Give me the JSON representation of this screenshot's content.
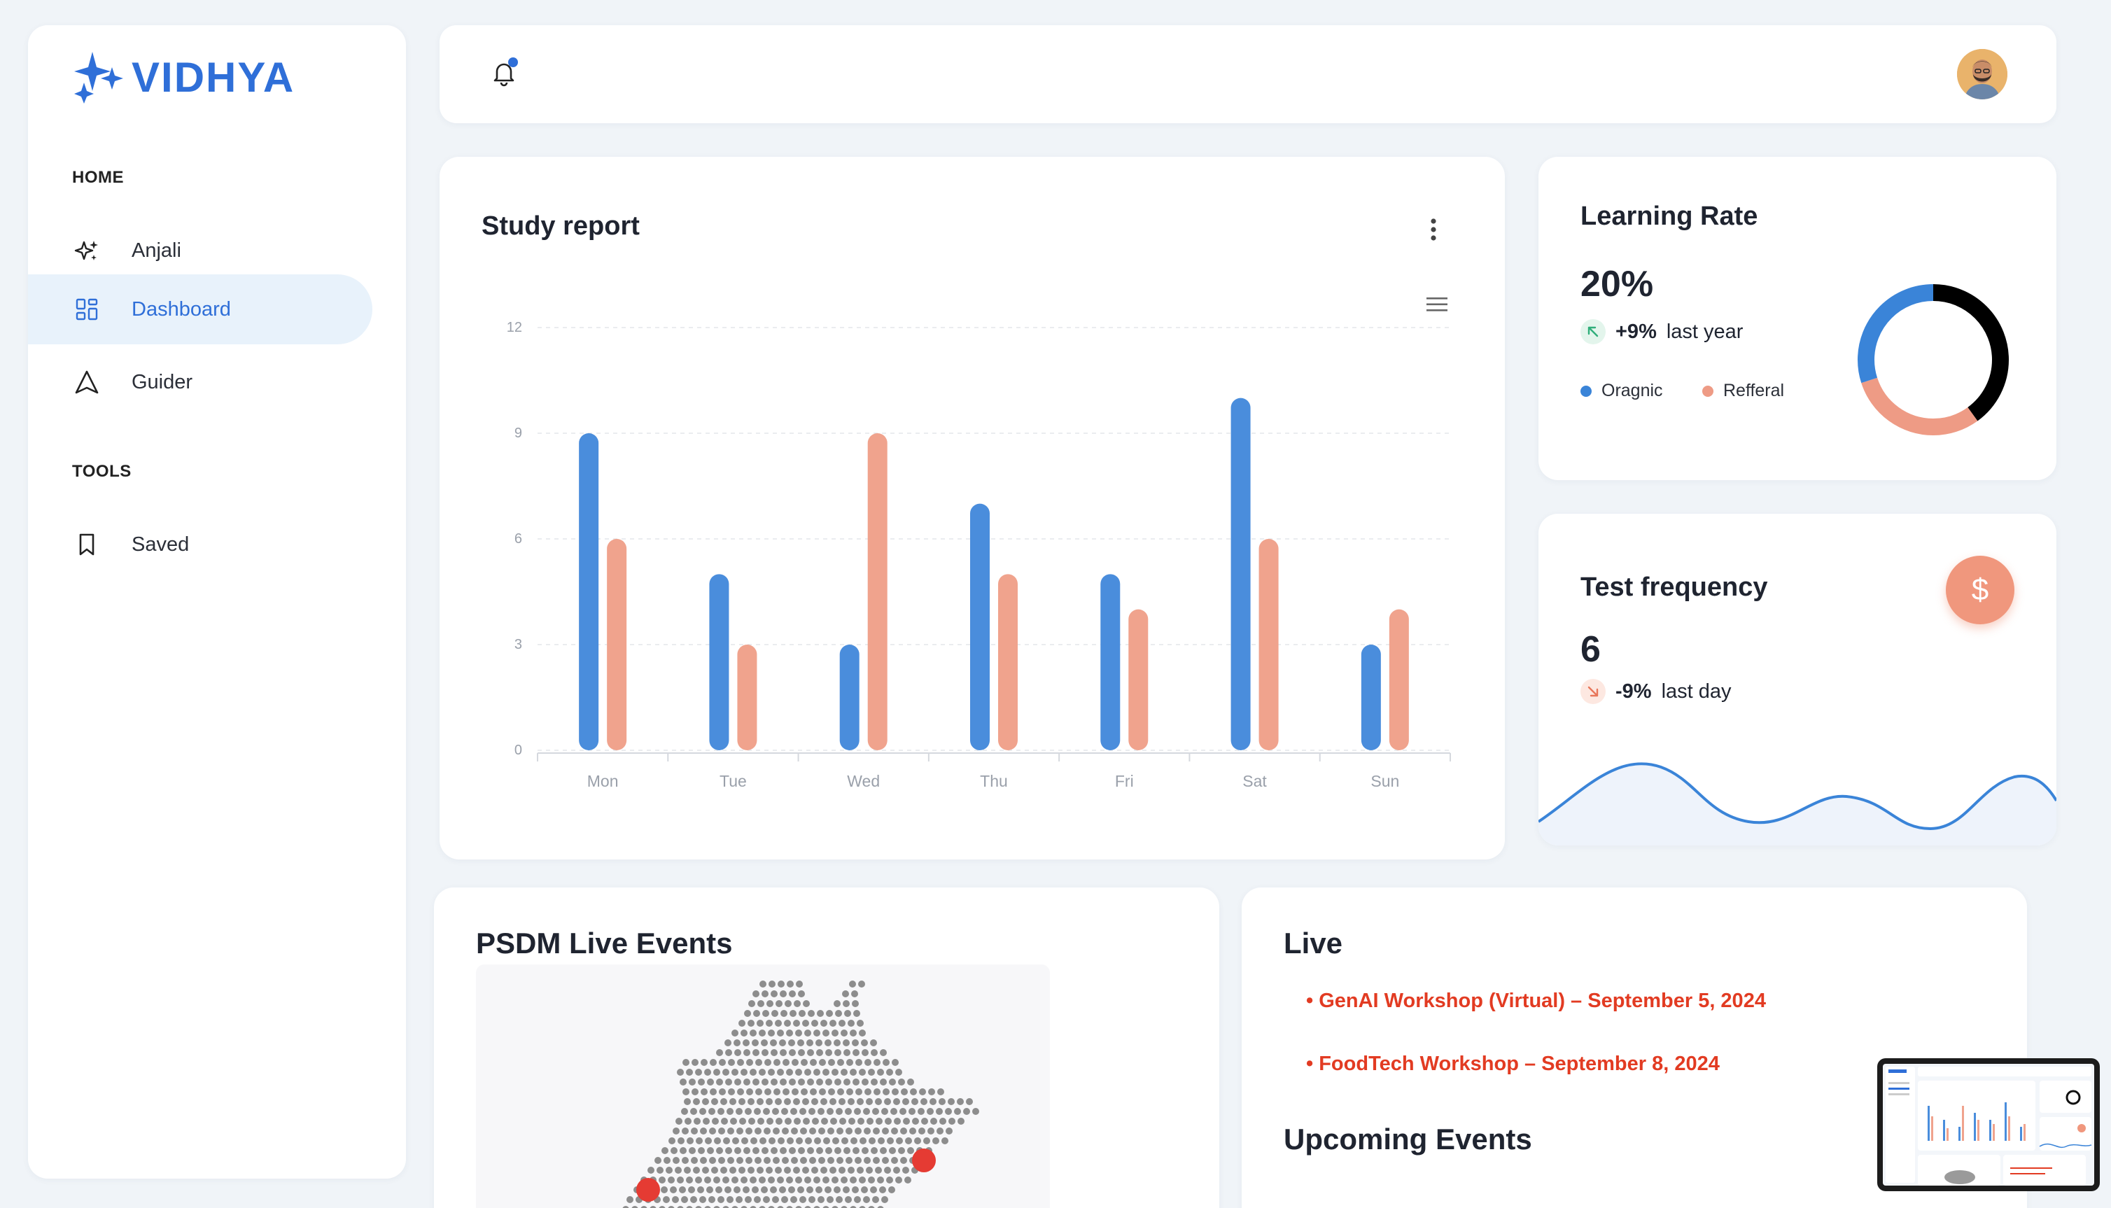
{
  "brand": {
    "name": "VIDHYA",
    "color": "#2f6fd8"
  },
  "sidebar": {
    "sections": [
      {
        "label": "HOME"
      },
      {
        "label": "TOOLS"
      }
    ],
    "items": [
      {
        "label": "Anjali",
        "icon": "sparkle-icon"
      },
      {
        "label": "Dashboard",
        "icon": "grid-icon",
        "active": true
      },
      {
        "label": "Guider",
        "icon": "navigation-arrow-icon"
      },
      {
        "label": "Saved",
        "icon": "bookmark-icon"
      }
    ]
  },
  "header": {
    "notification_icon": "bell-icon",
    "avatar_icon": "user-avatar"
  },
  "study_report": {
    "title": "Study report",
    "menu_icon": "more-vertical-icon",
    "chart_menu_icon": "hamburger-menu-icon"
  },
  "chart_data": {
    "type": "bar",
    "categories": [
      "Mon",
      "Tue",
      "Wed",
      "Thu",
      "Fri",
      "Sat",
      "Sun"
    ],
    "series": [
      {
        "values": [
          9,
          5,
          3,
          7,
          5,
          10,
          3
        ],
        "color": "#4a8ddc"
      },
      {
        "values": [
          6,
          3,
          9,
          5,
          4,
          6,
          4
        ],
        "color": "#f0a38d"
      }
    ],
    "yticks": [
      "0",
      "3",
      "6",
      "9",
      "12"
    ],
    "ylim": [
      0,
      12
    ],
    "grid": true,
    "legend": "none"
  },
  "learning_rate": {
    "title": "Learning Rate",
    "value": "20%",
    "delta": "+9%",
    "delta_label": "last year",
    "delta_color": "#2fae7a",
    "legend": [
      {
        "label": "Oragnic",
        "color": "#3a84d8"
      },
      {
        "label": "Refferal",
        "color": "#ee9b85"
      }
    ],
    "donut": [
      {
        "share": 0.4,
        "color": "#000000"
      },
      {
        "share": 0.3,
        "color": "#ee9b85"
      },
      {
        "share": 0.3,
        "color": "#3a84d8"
      }
    ]
  },
  "test_frequency": {
    "title": "Test frequency",
    "value": "6",
    "delta": "-9%",
    "delta_label": "last day",
    "delta_color": "#e8765a",
    "fab_icon": "dollar-icon",
    "fab_label": "$"
  },
  "psdm": {
    "title": "PSDM Live Events"
  },
  "live": {
    "title": "Live",
    "events": [
      "• GenAI Workshop (Virtual) – September 5, 2024",
      "• FoodTech Workshop – September 8, 2024"
    ],
    "upcoming_title": "Upcoming Events"
  }
}
